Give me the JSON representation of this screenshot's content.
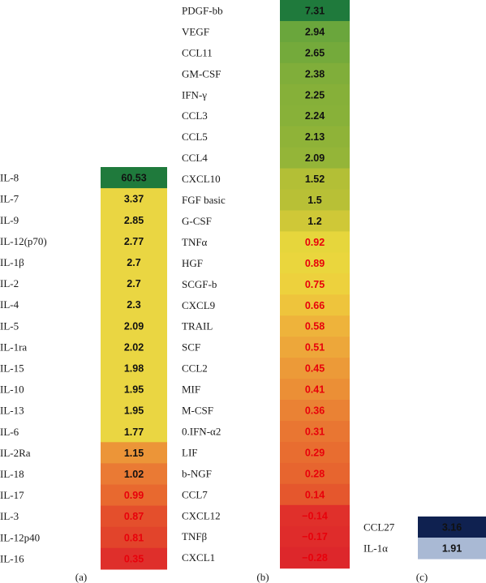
{
  "chart_data": [
    {
      "type": "heatmap",
      "panel": "(a)",
      "categories": [
        "IL-8",
        "IL-7",
        "IL-9",
        "IL-12(p70)",
        "IL-1β",
        "IL-2",
        "IL-4",
        "IL-5",
        "IL-1ra",
        "IL-15",
        "IL-10",
        "IL-13",
        "IL-6",
        "IL-2Ra",
        "IL-18",
        "IL-17",
        "IL-3",
        "IL-12p40",
        "IL-16"
      ],
      "values": [
        60.53,
        3.37,
        2.85,
        2.77,
        2.7,
        2.7,
        2.3,
        2.09,
        2.02,
        1.98,
        1.95,
        1.95,
        1.77,
        1.15,
        1.02,
        0.99,
        0.87,
        0.81,
        0.35
      ],
      "value_labels": [
        "60.53",
        "3.37",
        "2.85",
        "2.77",
        "2.7",
        "2.7",
        "2.3",
        "2.09",
        "2.02",
        "1.98",
        "1.95",
        "1.95",
        "1.77",
        "1.15",
        "1.02",
        "0.99",
        "0.87",
        "0.81",
        "0.35"
      ],
      "cell_colors": [
        "#1f7a3c",
        "#ead642",
        "#ead642",
        "#ead642",
        "#ead642",
        "#ead642",
        "#ead642",
        "#ead642",
        "#ead642",
        "#ead642",
        "#ead642",
        "#ead642",
        "#ead642",
        "#ec9538",
        "#ea7a34",
        "#e8692f",
        "#e44f2c",
        "#e2442b",
        "#df2f2b"
      ],
      "label_colors": [
        "#111111",
        "#111111",
        "#111111",
        "#111111",
        "#111111",
        "#111111",
        "#111111",
        "#111111",
        "#111111",
        "#111111",
        "#111111",
        "#111111",
        "#111111",
        "#111111",
        "#111111",
        "#e8000b",
        "#e8000b",
        "#e8000b",
        "#e8000b"
      ]
    },
    {
      "type": "heatmap",
      "panel": "(b)",
      "categories": [
        "PDGF-bb",
        "VEGF",
        "CCL11",
        "GM-CSF",
        "IFN-γ",
        "CCL3",
        "CCL5",
        "CCL4",
        "CXCL10",
        "FGF basic",
        "G-CSF",
        "TNFα",
        "HGF",
        "SCGF-b",
        "CXCL9",
        "TRAIL",
        "SCF",
        "CCL2",
        "MIF",
        "M-CSF",
        "0.IFN-α2",
        "LIF",
        "b-NGF",
        "CCL7",
        "CXCL12",
        "TNFβ",
        "CXCL1"
      ],
      "values": [
        7.31,
        2.94,
        2.65,
        2.38,
        2.25,
        2.24,
        2.13,
        2.09,
        1.52,
        1.5,
        1.2,
        0.92,
        0.89,
        0.75,
        0.66,
        0.58,
        0.51,
        0.45,
        0.41,
        0.36,
        0.31,
        0.29,
        0.28,
        0.14,
        -0.14,
        -0.17,
        -0.28
      ],
      "value_labels": [
        "7.31",
        "2.94",
        "2.65",
        "2.38",
        "2.25",
        "2.24",
        "2.13",
        "2.09",
        "1.52",
        "1.5",
        "1.2",
        "0.92",
        "0.89",
        "0.75",
        "0.66",
        "0.58",
        "0.51",
        "0.45",
        "0.41",
        "0.36",
        "0.31",
        "0.29",
        "0.28",
        "0.14",
        "−0.14",
        "−0.17",
        "−0.28"
      ],
      "cell_colors": [
        "#1f7a3c",
        "#6aa63c",
        "#74aa3b",
        "#80ae3a",
        "#86b039",
        "#88b139",
        "#8fb338",
        "#94b538",
        "#b3bf36",
        "#b8c036",
        "#cfc837",
        "#e6d63c",
        "#ead63d",
        "#edd13d",
        "#eec43c",
        "#eeb33b",
        "#eda73a",
        "#ec9a38",
        "#eb8f36",
        "#ea8234",
        "#e97632",
        "#e86d30",
        "#e7652f",
        "#e5572d",
        "#e0302b",
        "#df2c2b",
        "#dd272b"
      ],
      "label_colors": [
        "#111111",
        "#111111",
        "#111111",
        "#111111",
        "#111111",
        "#111111",
        "#111111",
        "#111111",
        "#111111",
        "#111111",
        "#111111",
        "#e8000b",
        "#e8000b",
        "#e8000b",
        "#e8000b",
        "#e8000b",
        "#e8000b",
        "#e8000b",
        "#e8000b",
        "#e8000b",
        "#e8000b",
        "#e8000b",
        "#e8000b",
        "#e8000b",
        "#e8000b",
        "#e8000b",
        "#e8000b"
      ]
    },
    {
      "type": "heatmap",
      "panel": "(c)",
      "categories": [
        "CCL27",
        "IL-1α"
      ],
      "values": [
        3.16,
        1.91
      ],
      "value_labels": [
        "3.16",
        "1.91"
      ],
      "cell_colors": [
        "#0f2150",
        "#a9b9d4"
      ],
      "label_colors": [
        "#111111",
        "#111111"
      ]
    }
  ]
}
